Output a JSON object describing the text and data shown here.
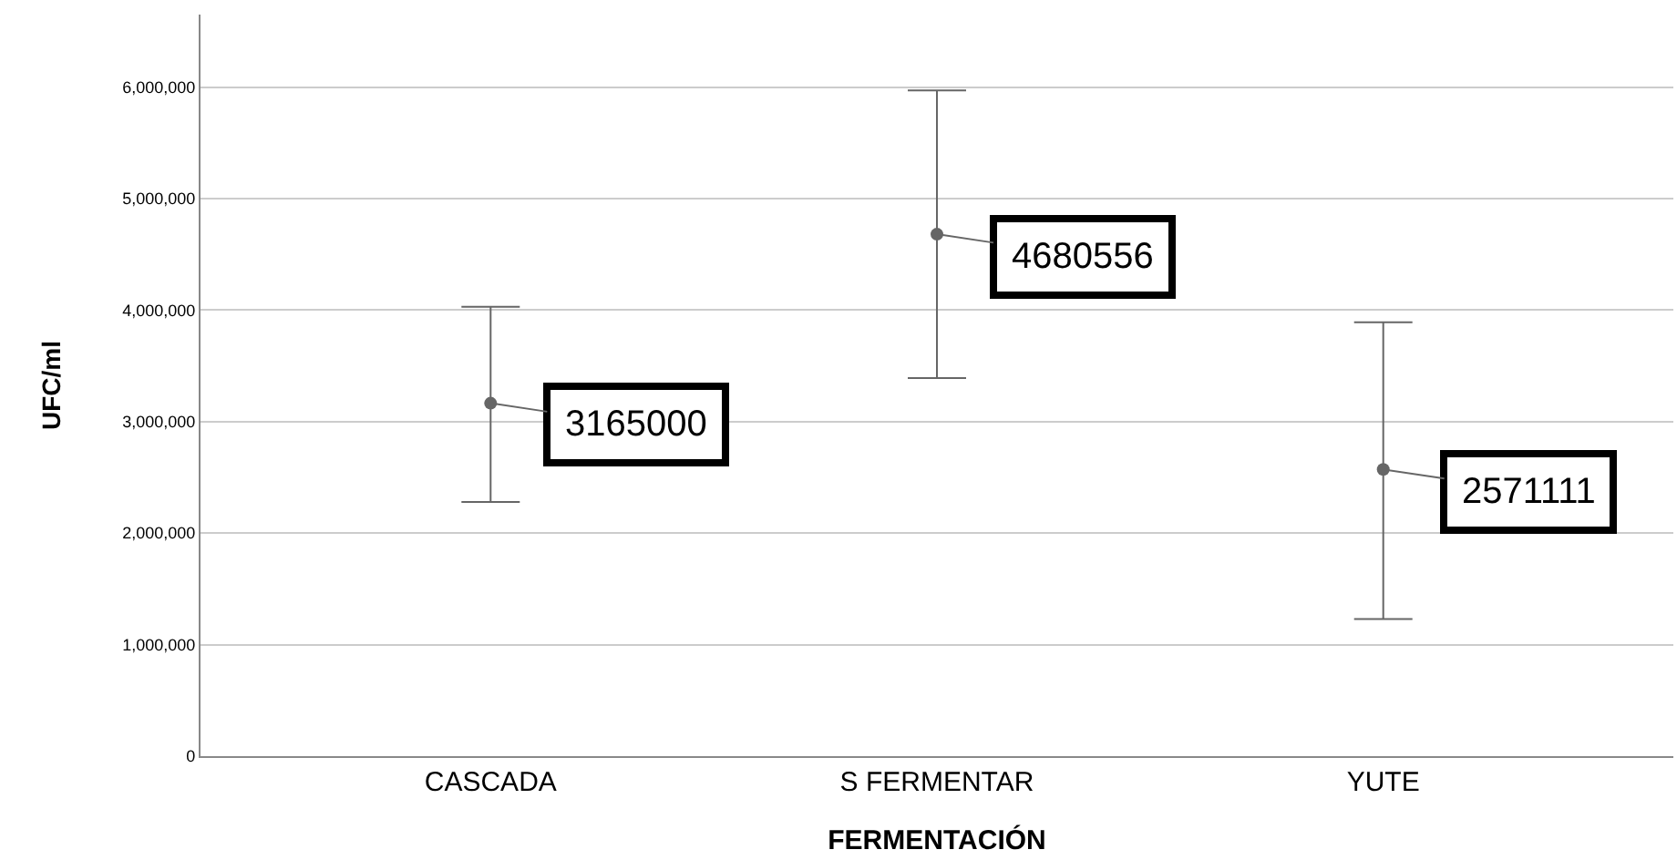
{
  "chart_data": {
    "type": "scatter",
    "xlabel": "FERMENTACIÓN",
    "ylabel": "UFC/ml",
    "categories": [
      "CASCADA",
      "S FERMENTAR",
      "YUTE"
    ],
    "values": [
      3165000,
      4680556,
      2571111
    ],
    "errors": [
      [
        2280000,
        4030000
      ],
      [
        3390000,
        5970000
      ],
      [
        1230000,
        3890000
      ]
    ],
    "color": "#666666",
    "marker": "circle",
    "data_labels": true,
    "grid": "y",
    "legend": false,
    "ylim": [
      0,
      6650000
    ],
    "yticks": [
      {
        "value": 0,
        "label": "0"
      },
      {
        "value": 1000000,
        "label": "1,000,000"
      },
      {
        "value": 2000000,
        "label": "2,000,000"
      },
      {
        "value": 3000000,
        "label": "3,000,000"
      },
      {
        "value": 4000000,
        "label": "4,000,000"
      },
      {
        "value": 5000000,
        "label": "5,000,000"
      },
      {
        "value": 6000000,
        "label": "6,000,000"
      }
    ]
  }
}
